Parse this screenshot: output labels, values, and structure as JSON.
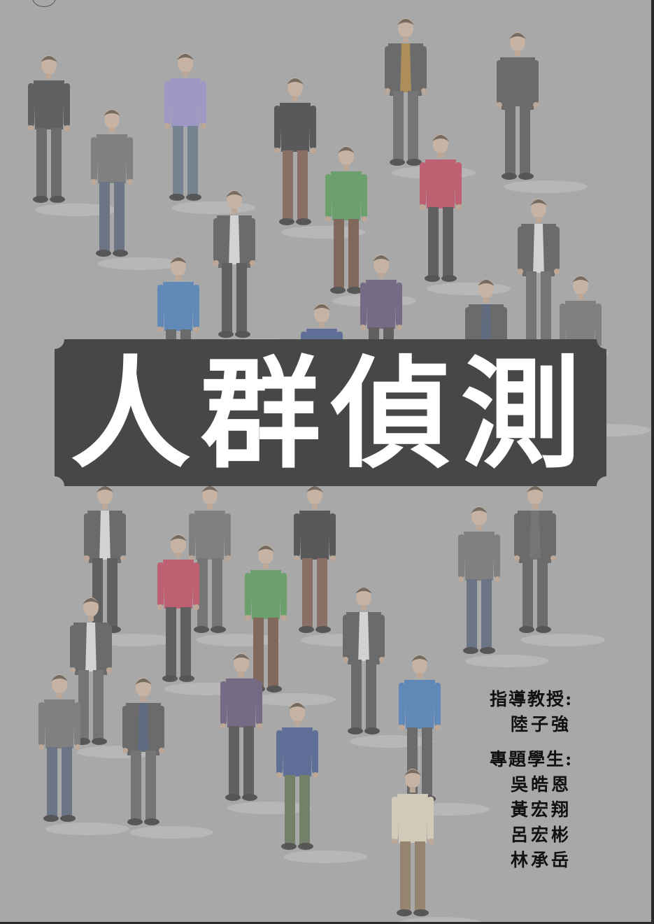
{
  "cover": {
    "title": "人群偵測",
    "advisor_label": "指導教授:",
    "advisor_name": "陸子強",
    "students_label": "專題學生:",
    "students": [
      "吳皓恩",
      "黃宏翔",
      "呂宏彬",
      "林承岳"
    ]
  },
  "colors": {
    "background": "#a8a8a8",
    "banner": "#474747",
    "title_text": "#ffffff",
    "credit_text": "#111111"
  },
  "icons": [
    "crowd-illustration"
  ]
}
